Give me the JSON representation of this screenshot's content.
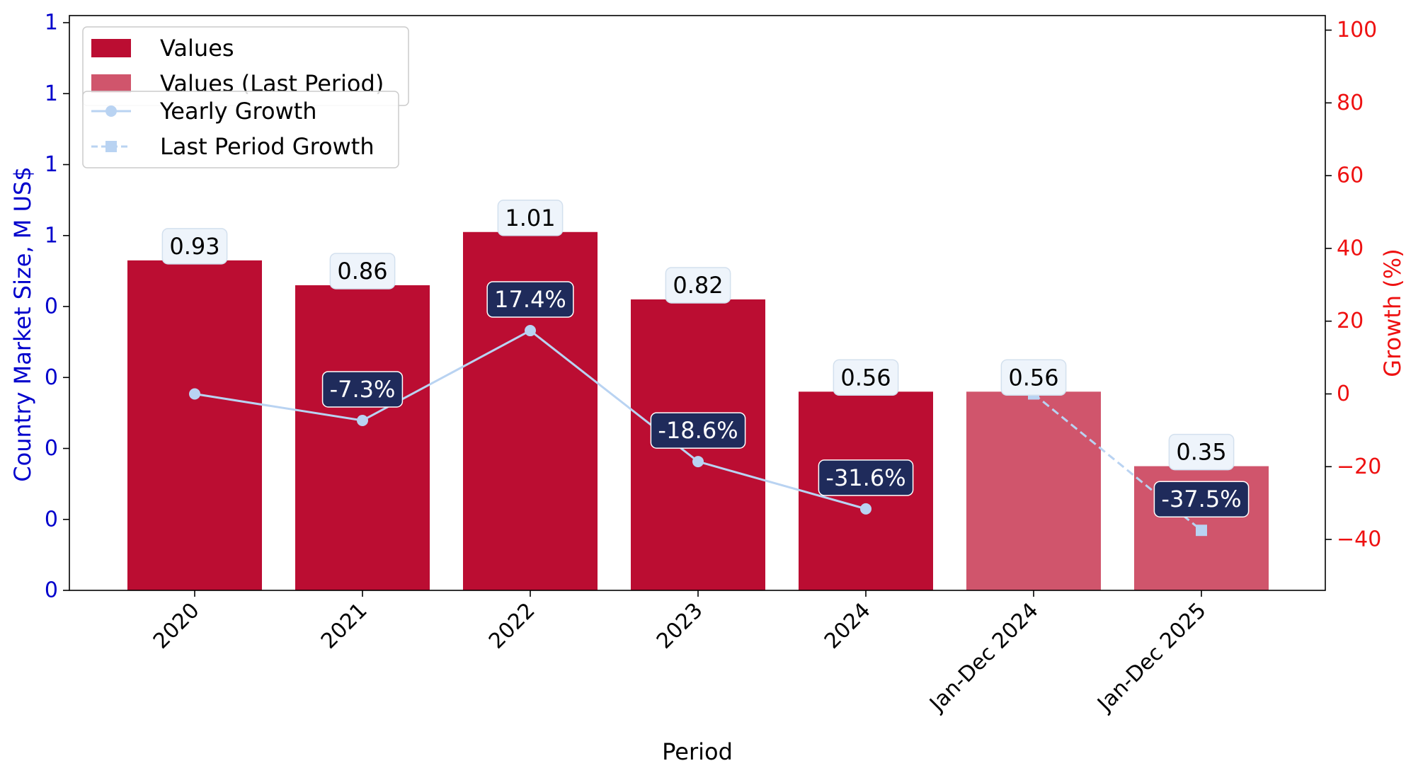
{
  "chart_data": {
    "type": "bar",
    "categories": [
      "2020",
      "2021",
      "2022",
      "2023",
      "2024",
      "Jan-Dec 2024",
      "Jan-Dec 2025"
    ],
    "xlabel": "Period",
    "ylabel_left": "Country Market Size, M US$",
    "ylabel_right": "Growth (%)",
    "left_ticks": [
      {
        "value": 0.0,
        "label": "0"
      },
      {
        "value": 0.2,
        "label": "0"
      },
      {
        "value": 0.4,
        "label": "0"
      },
      {
        "value": 0.6,
        "label": "0"
      },
      {
        "value": 0.8,
        "label": "0"
      },
      {
        "value": 1.0,
        "label": "1"
      },
      {
        "value": 1.2,
        "label": "1"
      },
      {
        "value": 1.4,
        "label": "1"
      },
      {
        "value": 1.6,
        "label": "1"
      }
    ],
    "right_ticks": [
      -40,
      -20,
      0,
      20,
      40,
      60,
      80,
      100
    ],
    "right_tick_labels": [
      "−40",
      "−20",
      "0",
      "20",
      "40",
      "60",
      "80",
      "100"
    ],
    "ylim_left": [
      0,
      1.62
    ],
    "ylim_right": [
      -54,
      104
    ],
    "series": [
      {
        "name": "Values",
        "kind": "bar",
        "color": "#bb0d32",
        "values": [
          0.93,
          0.86,
          1.01,
          0.82,
          0.56,
          null,
          null
        ],
        "labels": [
          "0.93",
          "0.86",
          "1.01",
          "0.82",
          "0.56",
          null,
          null
        ]
      },
      {
        "name": "Values (Last Period)",
        "kind": "bar",
        "color": "#d0556c",
        "values": [
          null,
          null,
          null,
          null,
          null,
          0.56,
          0.35
        ],
        "labels": [
          null,
          null,
          null,
          null,
          null,
          "0.56",
          "0.35"
        ]
      },
      {
        "name": "Yearly Growth",
        "kind": "line",
        "style": "solid",
        "marker": "circle",
        "color": "#b9d3f2",
        "values": [
          0.0,
          -7.3,
          17.4,
          -18.6,
          -31.6,
          null,
          null
        ],
        "labels": [
          null,
          "-7.3%",
          "17.4%",
          "-18.6%",
          "-31.6%",
          null,
          null
        ]
      },
      {
        "name": "Last Period Growth",
        "kind": "line",
        "style": "dashed",
        "marker": "square",
        "color": "#b9d3f2",
        "values": [
          null,
          null,
          null,
          null,
          null,
          0.0,
          -37.5
        ],
        "labels": [
          null,
          null,
          null,
          null,
          null,
          null,
          "-37.5%"
        ]
      }
    ],
    "legend_placement": "top-left",
    "grid": false,
    "colors": {
      "left_axis": "#0000cc",
      "right_axis": "#ee1111",
      "label_box_fill": "#eef4fb",
      "growth_box_fill": "#1f2b5b"
    }
  }
}
